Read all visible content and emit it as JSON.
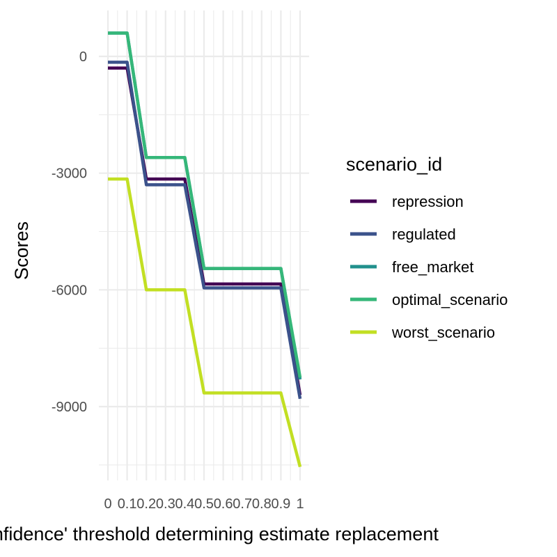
{
  "chart_data": {
    "type": "line",
    "title": "",
    "xlabel": "'Confidence' threshold determining estimate replacement",
    "ylabel": "Scores",
    "x": [
      0,
      0.1,
      0.2,
      0.3,
      0.4,
      0.5,
      0.6,
      0.7,
      0.8,
      0.9,
      1
    ],
    "xlim": [
      0,
      1
    ],
    "ylim": [
      -10600,
      600
    ],
    "x_ticks": [
      0,
      0.1,
      0.2,
      0.3,
      0.4,
      0.5,
      0.6,
      0.7,
      0.8,
      0.9,
      1
    ],
    "x_tick_labels": [
      "0",
      "0.1",
      "0.2",
      "0.3",
      "0.4",
      "0.5",
      "0.6",
      "0.7",
      "0.8",
      "0.9",
      "1"
    ],
    "y_ticks": [
      0,
      -3000,
      -6000,
      -9000
    ],
    "y_tick_labels": [
      "0",
      "-3000",
      "-6000",
      "-9000"
    ],
    "grid": true,
    "legend": {
      "title": "scenario_id",
      "position": "right"
    },
    "series": [
      {
        "name": "repression",
        "color": "#440154",
        "values": [
          -300,
          -300,
          -3150,
          -3150,
          -3150,
          -5850,
          -5850,
          -5850,
          -5850,
          -5850,
          -8700
        ]
      },
      {
        "name": "regulated",
        "color": "#3B528B",
        "values": [
          -150,
          -150,
          -3300,
          -3300,
          -3300,
          -5950,
          -5950,
          -5950,
          -5950,
          -5950,
          -8800
        ]
      },
      {
        "name": "free_market",
        "color": "#21908C",
        "values": [
          600,
          600,
          -2600,
          -2600,
          -2600,
          -5450,
          -5450,
          -5450,
          -5450,
          -5450,
          -8300
        ]
      },
      {
        "name": "optimal_scenario",
        "color": "#35B779",
        "values": [
          600,
          600,
          -2600,
          -2600,
          -2600,
          -5450,
          -5450,
          -5450,
          -5450,
          -5450,
          -8250
        ]
      },
      {
        "name": "worst_scenario",
        "color": "#C2DF23",
        "values": [
          -3150,
          -3150,
          -6000,
          -6000,
          -6000,
          -8650,
          -8650,
          -8650,
          -8650,
          -8650,
          -10550
        ]
      }
    ]
  }
}
